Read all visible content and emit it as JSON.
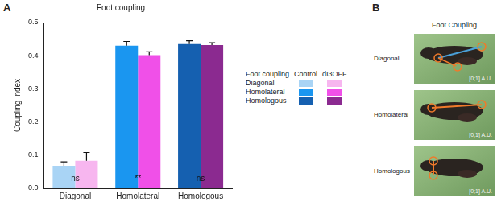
{
  "panel_labels": [
    "A",
    "B"
  ],
  "chart_data": {
    "type": "bar",
    "title": "Foot coupling",
    "y_label": "Coupling index",
    "categories": [
      "Diagonal",
      "Homolateral",
      "Homologous"
    ],
    "series": [
      {
        "name": "Control",
        "colors": [
          "#a9d4f5",
          "#1a96f0",
          "#1560b0"
        ],
        "values": [
          0.068,
          0.43,
          0.435
        ],
        "errors": [
          0.012,
          0.013,
          0.01
        ]
      },
      {
        "name": "dI3OFF",
        "colors": [
          "#f7b6ef",
          "#f050e8",
          "#8b2a90"
        ],
        "values": [
          0.083,
          0.402,
          0.432
        ],
        "errors": [
          0.025,
          0.01,
          0.007
        ]
      }
    ],
    "significance": [
      "ns",
      "**",
      "ns"
    ],
    "ylim": [
      0,
      0.5
    ],
    "yticks": [
      {
        "value": 0,
        "label": "0.0"
      },
      0.1,
      0.2,
      0.3,
      0.4,
      0.5
    ],
    "grid": false,
    "legend": "right",
    "legend_title": "Foot coupling"
  },
  "photo_panel": {
    "title": "Foot Coupling",
    "rows": [
      {
        "label": "Diagonal",
        "scale_label": "[0;1] A.U."
      },
      {
        "label": "Homolateral",
        "scale_label": "[0;1] A.U."
      },
      {
        "label": "Homologous",
        "scale_label": "[0;1] A.U."
      }
    ]
  }
}
